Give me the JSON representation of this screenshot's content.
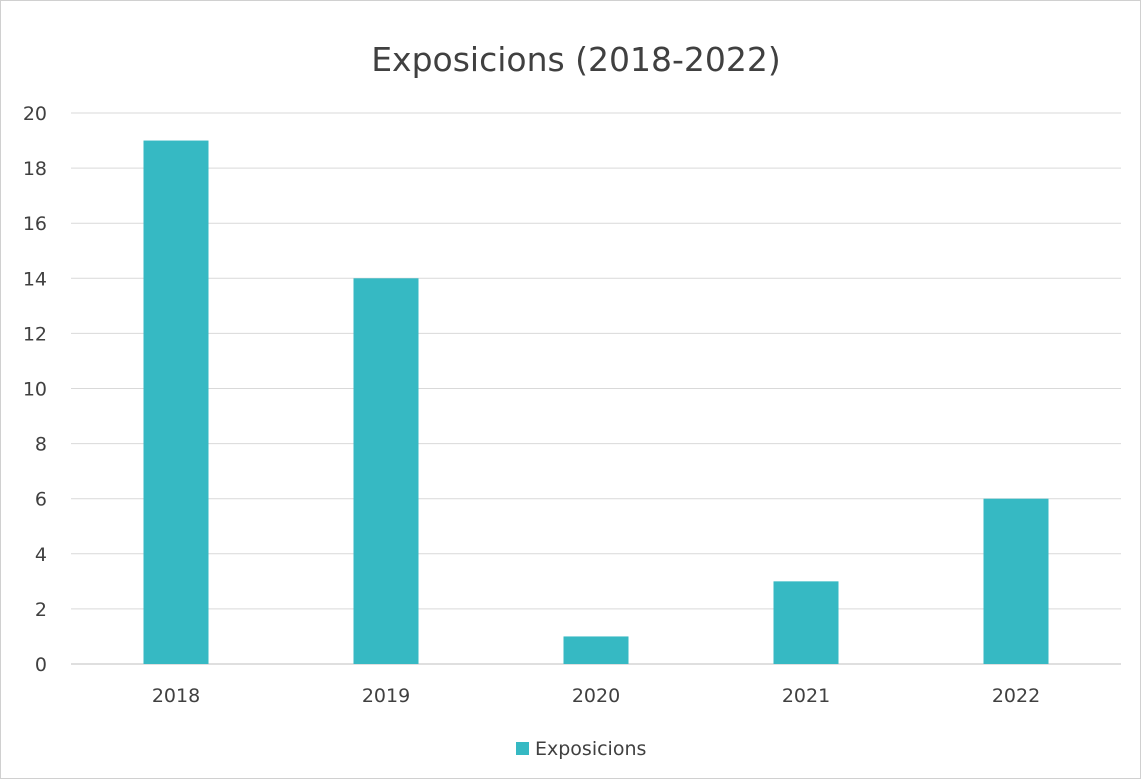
{
  "chart_data": {
    "type": "bar",
    "title": "Exposicions (2018-2022)",
    "xlabel": "",
    "ylabel": "",
    "categories": [
      "2018",
      "2019",
      "2020",
      "2021",
      "2022"
    ],
    "series": [
      {
        "name": "Exposicions",
        "values": [
          19,
          14,
          1,
          3,
          6
        ],
        "color": "#36B9C3"
      }
    ],
    "ylim": [
      0,
      20
    ],
    "yticks": [
      0,
      2,
      4,
      6,
      8,
      10,
      12,
      14,
      16,
      18,
      20
    ],
    "grid": true,
    "legend_position": "bottom",
    "colors": {
      "grid": "#d9d9d9",
      "axis": "#bfbfbf",
      "text": "#404040",
      "title": "#404040"
    }
  }
}
